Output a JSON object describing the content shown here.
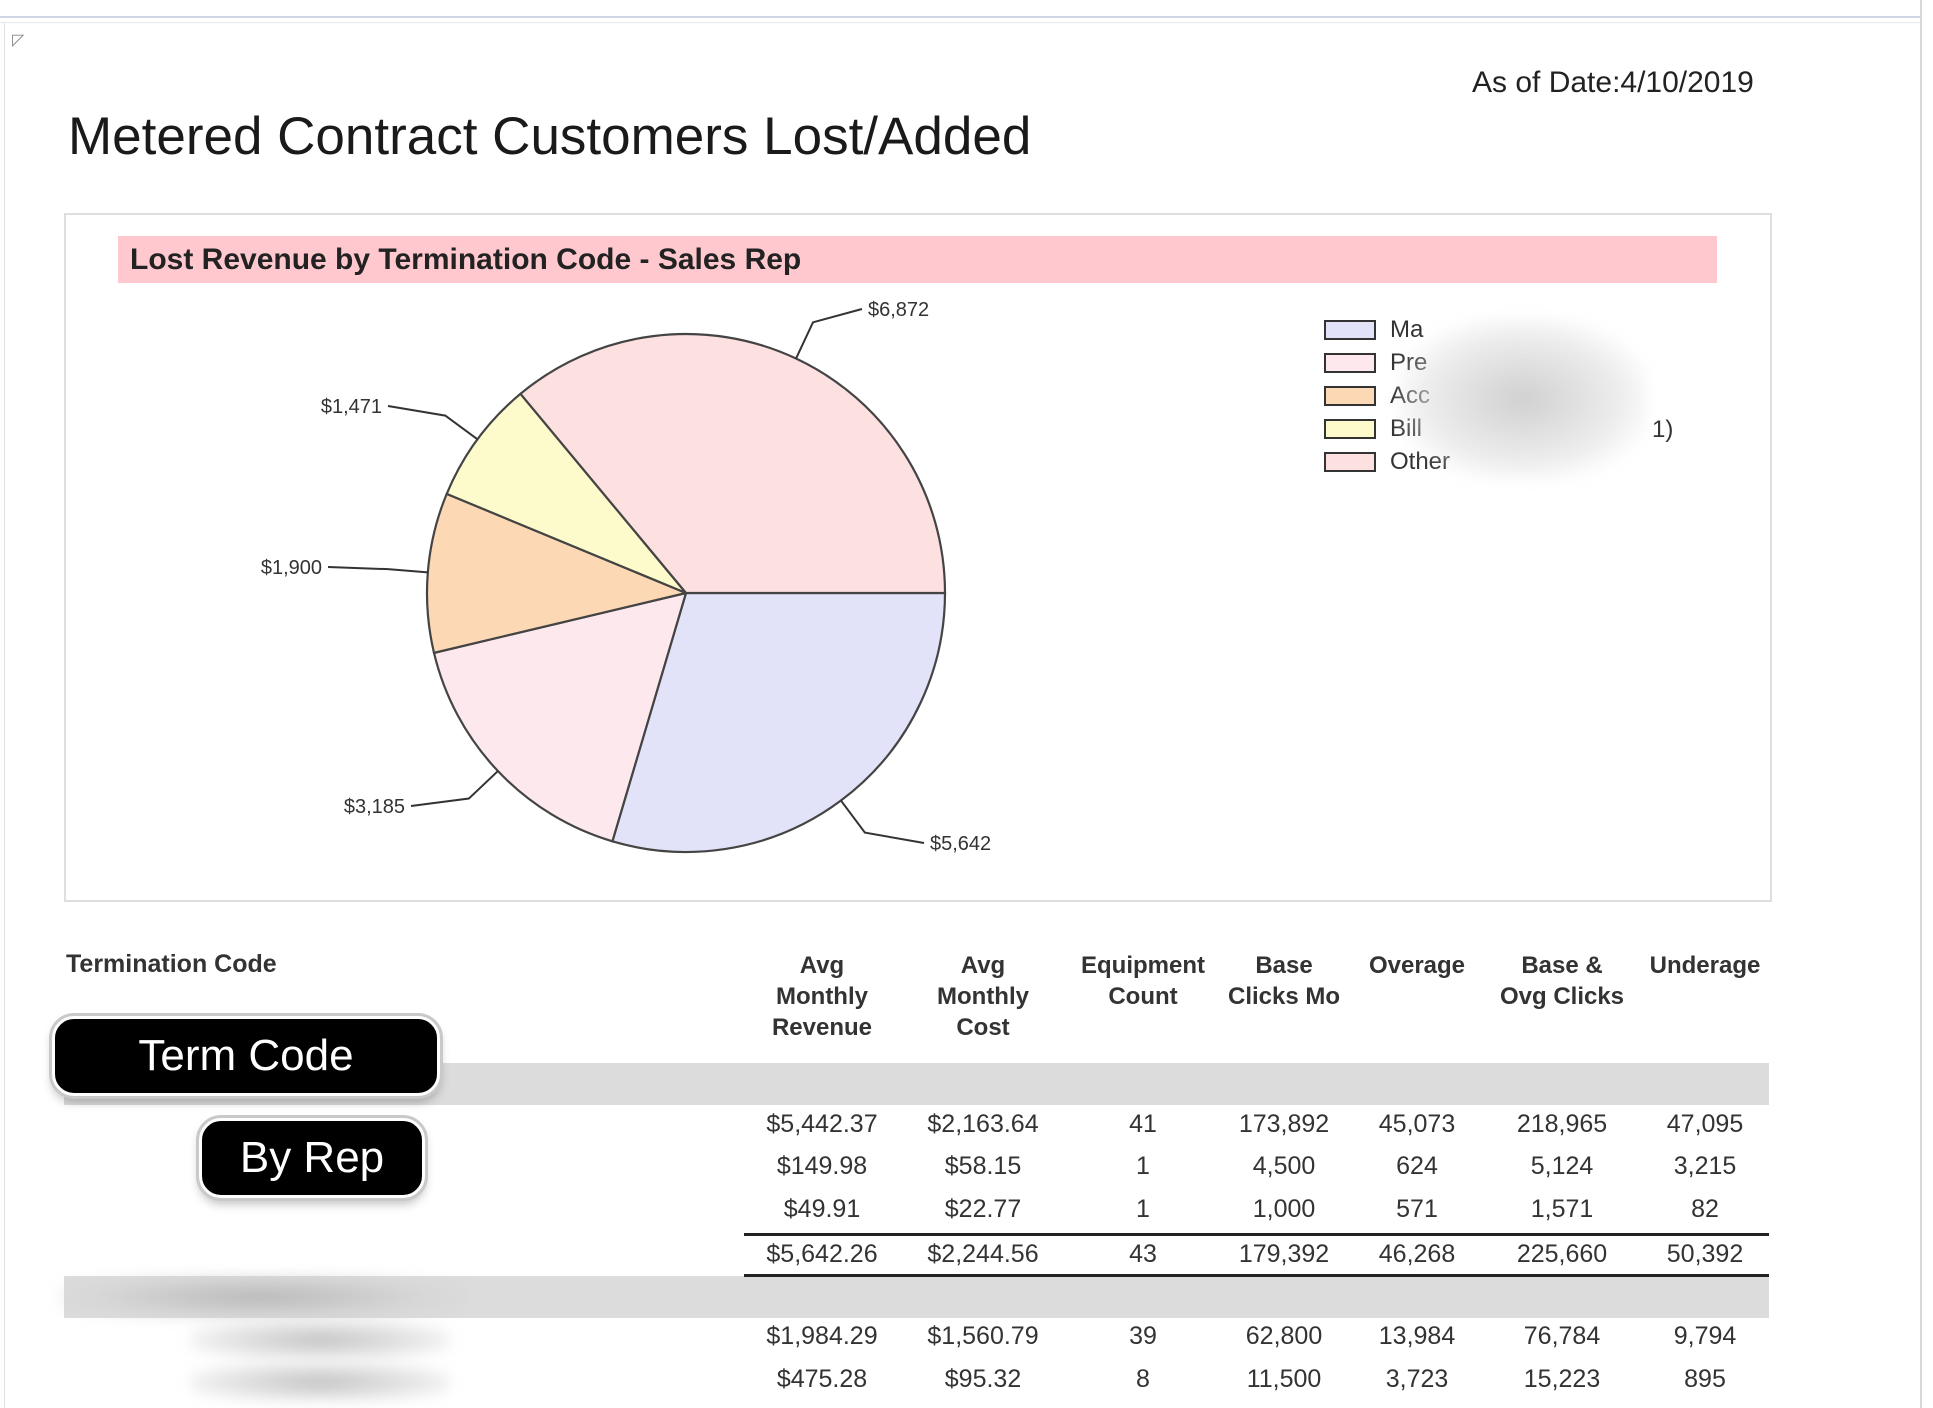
{
  "report": {
    "as_of": "As of Date:4/10/2019",
    "title": "Metered Contract Customers Lost/Added"
  },
  "chart_data": {
    "type": "pie",
    "title": "Lost Revenue by Termination Code - Sales Rep",
    "slices": [
      {
        "legend": "Ma",
        "value": 5642,
        "label": "$5,642",
        "color": "#e2e3f8"
      },
      {
        "legend": "Pre",
        "value": 3185,
        "label": "$3,185",
        "color": "#fde8ee"
      },
      {
        "legend": "Acc",
        "value": 1900,
        "label": "$1,900",
        "color": "#fdd8b4"
      },
      {
        "legend": "Bill",
        "value": 1471,
        "label": "$1,471",
        "color": "#fdfacb"
      },
      {
        "legend": "Other",
        "value": 6872,
        "label": "$6,872",
        "color": "#fde0e0"
      }
    ],
    "legend_position": "right",
    "legend_suffix": "1)"
  },
  "table": {
    "first_header": "Termination Code",
    "headers": [
      [
        "Avg",
        "Monthly",
        "Revenue"
      ],
      [
        "Avg",
        "Monthly",
        "Cost"
      ],
      [
        "Equipment",
        "Count"
      ],
      [
        "Base",
        "Clicks Mo"
      ],
      [
        "Overage"
      ],
      [
        "Base &",
        "Ovg Clicks"
      ],
      [
        "Underage"
      ]
    ],
    "group1_rows": [
      [
        "$5,442.37",
        "$2,163.64",
        "41",
        "173,892",
        "45,073",
        "218,965",
        "47,095"
      ],
      [
        "$149.98",
        "$58.15",
        "1",
        "4,500",
        "624",
        "5,124",
        "3,215"
      ],
      [
        "$49.91",
        "$22.77",
        "1",
        "1,000",
        "571",
        "1,571",
        "82"
      ]
    ],
    "group1_total": [
      "$5,642.26",
      "$2,244.56",
      "43",
      "179,392",
      "46,268",
      "225,660",
      "50,392"
    ],
    "group2_rows": [
      [
        "$1,984.29",
        "$1,560.79",
        "39",
        "62,800",
        "13,984",
        "76,784",
        "9,794"
      ],
      [
        "$475.28",
        "$95.32",
        "8",
        "11,500",
        "3,723",
        "15,223",
        "895"
      ]
    ]
  },
  "callouts": {
    "term_code": "Term Code",
    "by_rep": "By Rep"
  }
}
